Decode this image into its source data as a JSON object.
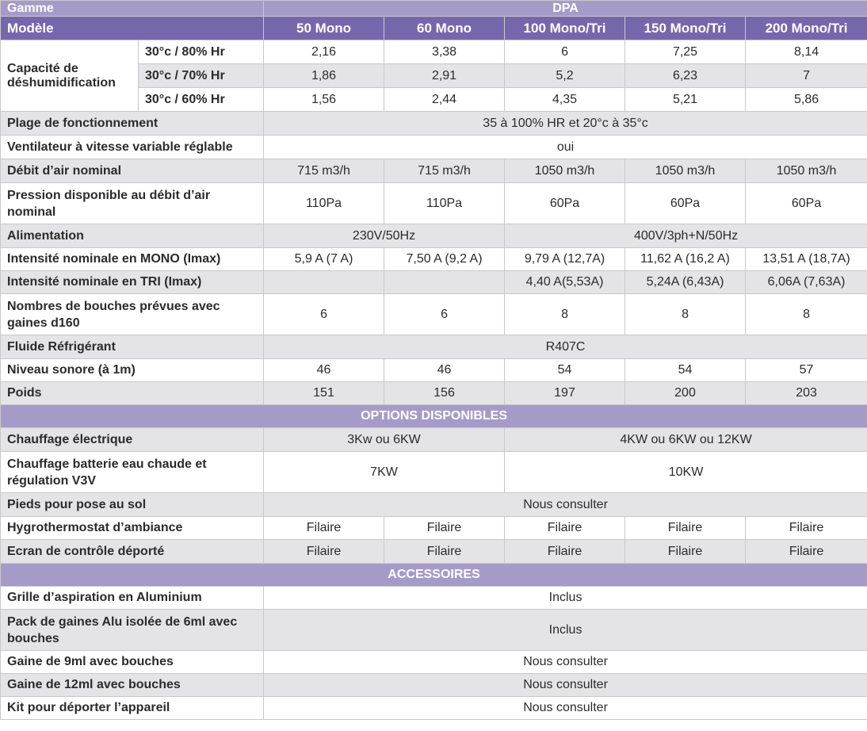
{
  "header": {
    "gamme_label": "Gamme",
    "gamme_value": "DPA",
    "modele_label": "Modèle",
    "models": [
      "50 Mono",
      "60 Mono",
      "100 Mono/Tri",
      "150 Mono/Tri",
      "200 Mono/Tri"
    ]
  },
  "capacity": {
    "label": "Capacité de déshumidification",
    "rows": [
      {
        "cond": "30°c / 80% Hr",
        "values": [
          "2,16",
          "3,38",
          "6",
          "7,25",
          "8,14"
        ]
      },
      {
        "cond": "30°c / 70% Hr",
        "values": [
          "1,86",
          "2,91",
          "5,2",
          "6,23",
          "7"
        ]
      },
      {
        "cond": "30°c / 60% Hr",
        "values": [
          "1,56",
          "2,44",
          "4,35",
          "5,21",
          "5,86"
        ]
      }
    ]
  },
  "specs": {
    "plage": {
      "label": "Plage de fonctionnement",
      "value": "35 à 100% HR et 20°c à 35°c"
    },
    "ventilateur": {
      "label": "Ventilateur à vitesse variable réglable",
      "value": "oui"
    },
    "debit": {
      "label": "Débit d’air nominal",
      "values": [
        "715 m3/h",
        "715 m3/h",
        "1050 m3/h",
        "1050 m3/h",
        "1050 m3/h"
      ]
    },
    "pression": {
      "label": "Pression disponible au débit d’air nominal",
      "values": [
        "110Pa",
        "110Pa",
        "60Pa",
        "60Pa",
        "60Pa"
      ]
    },
    "alimentation": {
      "label": "Alimentation",
      "mono": "230V/50Hz",
      "tri": "400V/3ph+N/50Hz"
    },
    "int_mono": {
      "label": "Intensité nominale en MONO (Imax)",
      "values": [
        "5,9 A (7 A)",
        "7,50 A (9,2 A)",
        "9,79 A (12,7A)",
        "11,62 A (16,2 A)",
        "13,51 A (18,7A)"
      ]
    },
    "int_tri": {
      "label": "Intensité nominale en TRI (Imax)",
      "values": [
        "",
        "",
        "4,40 A(5,53A)",
        "5,24A (6,43A)",
        "6,06A (7,63A)"
      ]
    },
    "bouches": {
      "label": "Nombres de bouches prévues avec gaines d160",
      "values": [
        "6",
        "6",
        "8",
        "8",
        "8"
      ]
    },
    "fluide": {
      "label": "Fluide Réfrigérant",
      "value": "R407C"
    },
    "niveau": {
      "label": "Niveau sonore (à 1m)",
      "values": [
        "46",
        "46",
        "54",
        "54",
        "57"
      ]
    },
    "poids": {
      "label": "Poids",
      "values": [
        "151",
        "156",
        "197",
        "200",
        "203"
      ]
    }
  },
  "options": {
    "title": "OPTIONS DISPONIBLES",
    "chauffage_elec": {
      "label": "Chauffage électrique",
      "mono": "3Kw ou 6KW",
      "tri": "4KW ou 6KW ou 12KW"
    },
    "chauffage_batterie": {
      "label": "Chauffage batterie eau chaude et régulation V3V",
      "mono": "7KW",
      "tri": "10KW"
    },
    "pieds": {
      "label": "Pieds pour pose au sol",
      "value": "Nous consulter"
    },
    "hygro": {
      "label": "Hygrothermostat d’ambiance",
      "values": [
        "Filaire",
        "Filaire",
        "Filaire",
        "Filaire",
        "Filaire"
      ]
    },
    "ecran": {
      "label": "Ecran de contrôle déporté",
      "values": [
        "Filaire",
        "Filaire",
        "Filaire",
        "Filaire",
        "Filaire"
      ]
    }
  },
  "accessoires": {
    "title": "ACCESSOIRES",
    "grille": {
      "label": "Grille d’aspiration en Aluminium",
      "value": "Inclus"
    },
    "pack": {
      "label": "Pack de gaines Alu isolée de 6ml avec bouches",
      "value": "Inclus"
    },
    "gaine9": {
      "label": "Gaine de 9ml avec bouches",
      "value": "Nous consulter"
    },
    "gaine12": {
      "label": "Gaine de 12ml avec bouches",
      "value": "Nous consulter"
    },
    "kit": {
      "label": "Kit pour déporter l’appareil",
      "value": "Nous consulter"
    }
  },
  "colors": {
    "header_light": "#a69bc8",
    "header_dark": "#7667ad",
    "row_grey": "#e4e4e6",
    "border": "#c8c8cc"
  }
}
